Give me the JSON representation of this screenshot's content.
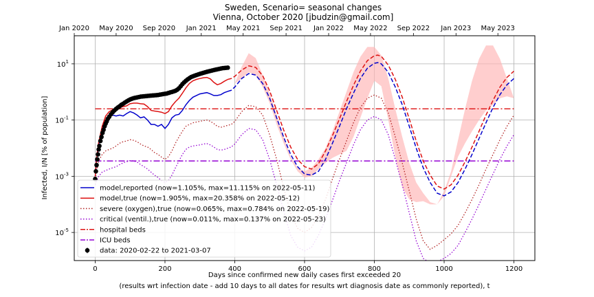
{
  "chart_data": {
    "type": "line",
    "title_line1": "Sweden, Scenario= seasonal changes",
    "title_line2": "Vienna, October 2020 [jbudzin@gmail.com]",
    "xlabel_line1": "Days since confirmed new daily cases first exceeded 20",
    "xlabel_line2": "(results wrt infection date - add 10 days to all dates for results wrt diagnosis date as commonly reported), t",
    "ylabel": "Infected, I/N [% of population]",
    "y_scale": "log",
    "xlim": [
      -60,
      1260
    ],
    "ylim": [
      1e-06,
      100
    ],
    "grid": true,
    "x_ticks": [
      0,
      200,
      400,
      600,
      800,
      1000,
      1200
    ],
    "x_tick_labels": [
      "0",
      "200",
      "400",
      "600",
      "800",
      "1000",
      "1200"
    ],
    "y_ticks": [
      1e-05,
      0.001,
      0.1,
      10
    ],
    "y_tick_labels": [
      "10^-5",
      "10^-3",
      "10^-1",
      "10^1"
    ],
    "top_axis_ticks": [
      {
        "day": -60,
        "label": "Jan 2020"
      },
      {
        "day": 60,
        "label": "May 2020"
      },
      {
        "day": 183,
        "label": "Sep 2020"
      },
      {
        "day": 304,
        "label": "Jan 2021"
      },
      {
        "day": 424,
        "label": "May 2021"
      },
      {
        "day": 547,
        "label": "Sep 2021"
      },
      {
        "day": 669,
        "label": "Jan 2022"
      },
      {
        "day": 789,
        "label": "May 2022"
      },
      {
        "day": 912,
        "label": "Sep 2022"
      },
      {
        "day": 1034,
        "label": "Jan 2023"
      },
      {
        "day": 1154,
        "label": "May 2023"
      }
    ],
    "hlines": {
      "hospital_beds": 0.25,
      "icu_beds": 0.0035
    },
    "legend": {
      "placement": "lower-left",
      "entries": [
        {
          "label": "model,reported (now=1.105%, max=11.115% on 2022-05-11)",
          "color": "#0000cc",
          "style": "solid"
        },
        {
          "label": "model,true (now=1.905%, max=20.358% on 2022-05-12)",
          "color": "#dd1111",
          "style": "solid"
        },
        {
          "label": "severe (oxygen),true (now=0.065%, max=0.784% on 2022-05-19)",
          "color": "#b22222",
          "style": "dotted"
        },
        {
          "label": "critical (ventil.),true (now=0.011%, max=0.137% on 2022-05-23)",
          "color": "#9400d3",
          "style": "dotted"
        },
        {
          "label": "hospital beds",
          "color": "#dd1111",
          "style": "dashdot"
        },
        {
          "label": "ICU beds",
          "color": "#9400d3",
          "style": "dashdot"
        },
        {
          "label": "data: 2020-02-22 to 2021-03-07",
          "color": "#000000",
          "style": "marker"
        }
      ]
    },
    "series": [
      {
        "key": "reported",
        "x": [
          0,
          5,
          10,
          20,
          30,
          40,
          50,
          60,
          70,
          80,
          90,
          100,
          110,
          120,
          130,
          140,
          150,
          160,
          170,
          180,
          190,
          200,
          210,
          220,
          230,
          240,
          250,
          260,
          270,
          280,
          290,
          300,
          310,
          320,
          330,
          340,
          350,
          360,
          370,
          380,
          390,
          400,
          420,
          440,
          460,
          480,
          500,
          520,
          540,
          560,
          580,
          600,
          620,
          640,
          660,
          680,
          700,
          720,
          740,
          760,
          780,
          800,
          810,
          820,
          840,
          860,
          880,
          900,
          920,
          940,
          960,
          980,
          1000,
          1020,
          1040,
          1060,
          1080,
          1100,
          1120,
          1140,
          1160,
          1180,
          1200
        ],
        "y": [
          0.001,
          0.005,
          0.013,
          0.045,
          0.1,
          0.14,
          0.15,
          0.14,
          0.15,
          0.14,
          0.17,
          0.2,
          0.18,
          0.15,
          0.12,
          0.13,
          0.1,
          0.07,
          0.07,
          0.06,
          0.07,
          0.05,
          0.07,
          0.12,
          0.15,
          0.16,
          0.22,
          0.35,
          0.5,
          0.65,
          0.75,
          0.85,
          0.9,
          0.95,
          0.85,
          0.75,
          0.75,
          0.8,
          0.95,
          1.05,
          1.15,
          1.5,
          3.0,
          4.5,
          4.0,
          2.0,
          0.6,
          0.12,
          0.025,
          0.006,
          0.0022,
          0.0012,
          0.0011,
          0.0015,
          0.004,
          0.015,
          0.06,
          0.25,
          0.9,
          3.0,
          7.0,
          10.5,
          11.1,
          10.0,
          5.0,
          1.5,
          0.35,
          0.06,
          0.01,
          0.002,
          0.0006,
          0.00025,
          0.0002,
          0.00028,
          0.0006,
          0.0018,
          0.006,
          0.022,
          0.08,
          0.28,
          0.8,
          1.8,
          3.0
        ]
      },
      {
        "key": "true",
        "x": [
          0,
          5,
          10,
          20,
          30,
          40,
          50,
          60,
          70,
          80,
          90,
          100,
          110,
          120,
          130,
          140,
          150,
          160,
          170,
          180,
          190,
          200,
          210,
          220,
          230,
          240,
          250,
          260,
          270,
          280,
          290,
          300,
          310,
          320,
          330,
          340,
          350,
          360,
          370,
          380,
          390,
          400,
          420,
          440,
          460,
          480,
          500,
          520,
          540,
          560,
          580,
          600,
          620,
          640,
          660,
          680,
          700,
          720,
          740,
          760,
          780,
          800,
          810,
          820,
          840,
          860,
          880,
          900,
          920,
          940,
          960,
          980,
          1000,
          1020,
          1040,
          1060,
          1080,
          1100,
          1120,
          1140,
          1160,
          1180,
          1200
        ],
        "y": [
          0.001,
          0.006,
          0.016,
          0.06,
          0.14,
          0.2,
          0.23,
          0.25,
          0.28,
          0.3,
          0.32,
          0.38,
          0.4,
          0.4,
          0.38,
          0.37,
          0.3,
          0.22,
          0.21,
          0.2,
          0.19,
          0.17,
          0.2,
          0.32,
          0.45,
          0.6,
          0.9,
          1.4,
          2.0,
          2.5,
          2.8,
          3.0,
          3.2,
          3.3,
          2.9,
          2.2,
          1.8,
          2.0,
          2.4,
          2.8,
          3.0,
          3.6,
          6.0,
          8.5,
          7.5,
          3.8,
          1.1,
          0.22,
          0.045,
          0.011,
          0.004,
          0.0022,
          0.0018,
          0.0028,
          0.008,
          0.028,
          0.11,
          0.45,
          1.7,
          5.5,
          13.0,
          19.5,
          20.4,
          18.5,
          9.0,
          2.8,
          0.65,
          0.11,
          0.018,
          0.0035,
          0.0011,
          0.00045,
          0.00035,
          0.0005,
          0.0011,
          0.0033,
          0.011,
          0.04,
          0.15,
          0.5,
          1.5,
          3.3,
          5.5
        ]
      },
      {
        "key": "severe",
        "x": [
          0,
          10,
          20,
          30,
          40,
          50,
          60,
          70,
          80,
          90,
          100,
          110,
          120,
          130,
          140,
          150,
          160,
          170,
          180,
          190,
          200,
          210,
          220,
          230,
          240,
          250,
          260,
          270,
          280,
          290,
          300,
          310,
          320,
          330,
          340,
          350,
          360,
          370,
          380,
          390,
          400,
          420,
          440,
          460,
          480,
          500,
          520,
          540,
          560,
          580,
          600,
          620,
          640,
          660,
          680,
          700,
          720,
          740,
          760,
          780,
          800,
          820,
          840,
          860,
          880,
          900,
          920,
          940,
          960,
          980,
          1000,
          1020,
          1040,
          1060,
          1080,
          1100,
          1120,
          1140,
          1160,
          1180,
          1200
        ],
        "y": [
          0.0008,
          0.0035,
          0.006,
          0.008,
          0.009,
          0.01,
          0.012,
          0.015,
          0.017,
          0.018,
          0.02,
          0.019,
          0.017,
          0.014,
          0.012,
          0.011,
          0.009,
          0.007,
          0.006,
          0.0048,
          0.004,
          0.005,
          0.008,
          0.015,
          0.025,
          0.04,
          0.06,
          0.07,
          0.08,
          0.085,
          0.09,
          0.095,
          0.1,
          0.09,
          0.075,
          0.06,
          0.055,
          0.06,
          0.065,
          0.07,
          0.09,
          0.2,
          0.33,
          0.3,
          0.15,
          0.03,
          0.004,
          0.0004,
          5e-05,
          1.4e-05,
          1e-05,
          1.5e-05,
          4e-05,
          0.00015,
          0.0008,
          0.004,
          0.018,
          0.08,
          0.28,
          0.6,
          0.78,
          0.6,
          0.18,
          0.025,
          0.003,
          0.0003,
          3e-05,
          5e-06,
          2.5e-06,
          3.5e-06,
          5.5e-06,
          9e-06,
          1.8e-05,
          5e-05,
          0.00015,
          0.0005,
          0.0018,
          0.006,
          0.02,
          0.06,
          0.15
        ]
      },
      {
        "key": "critical",
        "x": [
          0,
          10,
          20,
          30,
          40,
          50,
          60,
          70,
          80,
          90,
          100,
          110,
          120,
          130,
          140,
          150,
          160,
          170,
          180,
          190,
          200,
          210,
          220,
          230,
          240,
          250,
          260,
          270,
          280,
          290,
          300,
          310,
          320,
          330,
          340,
          350,
          360,
          370,
          380,
          390,
          400,
          420,
          440,
          460,
          480,
          500,
          520,
          540,
          560,
          580,
          600,
          620,
          640,
          660,
          680,
          700,
          720,
          740,
          760,
          780,
          800,
          820,
          840,
          860,
          880,
          900,
          920,
          940,
          960,
          980,
          1000,
          1020,
          1040,
          1060,
          1080,
          1100,
          1120,
          1140,
          1160,
          1180,
          1200
        ],
        "y": [
          0.0005,
          0.001,
          0.0014,
          0.0016,
          0.0018,
          0.002,
          0.0022,
          0.0026,
          0.003,
          0.0033,
          0.0036,
          0.0035,
          0.0032,
          0.0026,
          0.0022,
          0.0018,
          0.0014,
          0.0011,
          0.0009,
          0.0007,
          0.0006,
          0.0007,
          0.0011,
          0.002,
          0.0035,
          0.006,
          0.009,
          0.011,
          0.012,
          0.0125,
          0.013,
          0.014,
          0.0145,
          0.013,
          0.011,
          0.009,
          0.0085,
          0.009,
          0.01,
          0.011,
          0.014,
          0.03,
          0.05,
          0.045,
          0.02,
          0.004,
          0.0005,
          6e-05,
          8e-06,
          3e-06,
          2.2e-06,
          3e-06,
          8e-06,
          3e-05,
          0.00014,
          0.0007,
          0.003,
          0.013,
          0.045,
          0.1,
          0.135,
          0.1,
          0.03,
          0.004,
          0.0005,
          5e-05,
          5e-06,
          1.2e-06,
          8e-07,
          9e-07,
          1.2e-06,
          1.8e-06,
          3.5e-06,
          1e-05,
          3e-05,
          0.0001,
          0.00035,
          0.0012,
          0.004,
          0.012,
          0.03
        ]
      },
      {
        "key": "band",
        "x": [
          400,
          420,
          440,
          460,
          480,
          500,
          520,
          540,
          560,
          580,
          600,
          620,
          640,
          660,
          680,
          700,
          720,
          740,
          760,
          780,
          800,
          820,
          840,
          860,
          880,
          900,
          920,
          940,
          960,
          980,
          1000,
          1020,
          1040,
          1060,
          1080,
          1100,
          1120,
          1140,
          1160,
          1180,
          1200
        ],
        "y_low": [
          2.0,
          3.0,
          5.0,
          4.0,
          1.5,
          0.4,
          0.07,
          0.015,
          0.004,
          0.0015,
          0.0009,
          0.001,
          0.0018,
          0.003,
          0.0045,
          0.006,
          0.008,
          0.025,
          0.12,
          0.6,
          2.5,
          1.6,
          0.1,
          0.005,
          0.0004,
          0.00015,
          0.00012,
          0.00013,
          0.0001,
          0.0001,
          0.0002,
          0.001,
          0.005,
          0.015,
          0.04,
          0.1,
          0.22,
          0.35,
          0.6,
          0.7,
          0.6
        ],
        "y_high": [
          2.0,
          8.0,
          24.0,
          16.0,
          4.0,
          0.9,
          0.15,
          0.025,
          0.005,
          0.002,
          0.0015,
          0.002,
          0.004,
          0.01,
          0.04,
          0.2,
          1.0,
          5.0,
          18.0,
          40.0,
          40.0,
          20.0,
          3.0,
          0.25,
          0.025,
          0.003,
          0.0006,
          0.00025,
          0.00012,
          0.0001,
          0.0003,
          0.0015,
          0.02,
          0.25,
          2.5,
          15.0,
          45.0,
          45.0,
          15.0,
          3.0,
          0.6
        ]
      },
      {
        "key": "data",
        "x": [
          0,
          2,
          4,
          6,
          8,
          10,
          12,
          15,
          18,
          21,
          24,
          27,
          30,
          33,
          36,
          40,
          45,
          50,
          55,
          60,
          65,
          70,
          75,
          80,
          85,
          90,
          95,
          100,
          105,
          110,
          115,
          120,
          125,
          130,
          135,
          140,
          145,
          150,
          155,
          160,
          165,
          170,
          175,
          180,
          185,
          190,
          195,
          200,
          205,
          210,
          215,
          220,
          225,
          230,
          235,
          240,
          245,
          250,
          255,
          260,
          265,
          270,
          275,
          280,
          285,
          290,
          295,
          300,
          305,
          310,
          315,
          320,
          325,
          330,
          335,
          340,
          345,
          350,
          355,
          360,
          365,
          370,
          375,
          380
        ],
        "y": [
          0.0008,
          0.0015,
          0.0025,
          0.004,
          0.006,
          0.009,
          0.012,
          0.018,
          0.025,
          0.035,
          0.045,
          0.06,
          0.075,
          0.09,
          0.11,
          0.13,
          0.16,
          0.19,
          0.22,
          0.25,
          0.28,
          0.31,
          0.35,
          0.38,
          0.42,
          0.46,
          0.5,
          0.54,
          0.57,
          0.6,
          0.62,
          0.64,
          0.66,
          0.68,
          0.69,
          0.7,
          0.71,
          0.72,
          0.73,
          0.74,
          0.75,
          0.76,
          0.77,
          0.78,
          0.8,
          0.82,
          0.84,
          0.86,
          0.88,
          0.92,
          0.96,
          1.0,
          1.05,
          1.1,
          1.2,
          1.35,
          1.6,
          1.9,
          2.2,
          2.5,
          2.8,
          3.1,
          3.4,
          3.6,
          3.8,
          4.0,
          4.2,
          4.4,
          4.6,
          4.8,
          5.0,
          5.2,
          5.4,
          5.6,
          5.8,
          6.0,
          6.2,
          6.4,
          6.6,
          6.8,
          7.0,
          7.1,
          7.2,
          7.3
        ]
      }
    ]
  }
}
